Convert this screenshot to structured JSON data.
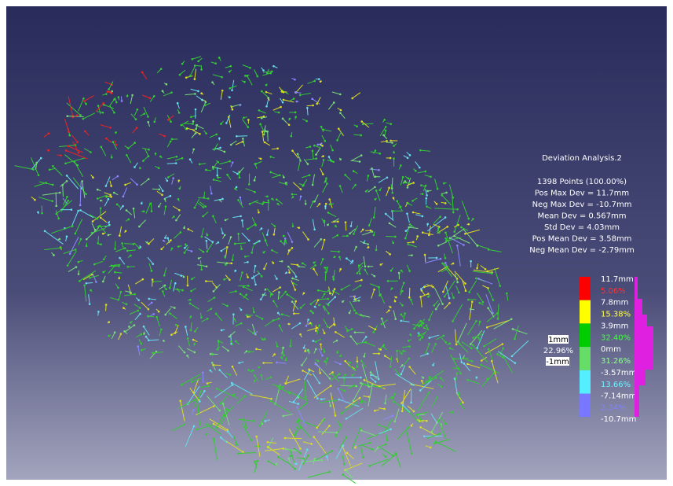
{
  "analysis": {
    "title": "Deviation Analysis.2",
    "stats": [
      "1398 Points (100.00%)",
      "Pos Max Dev = 11.7mm",
      "Neg Max Dev = -10.7mm",
      "Mean Dev = 0.567mm",
      "Std Dev = 4.03mm",
      "Pos Mean Dev = 3.58mm",
      "Neg Mean Dev = -2.79mm"
    ]
  },
  "scale": {
    "limits": [
      "11.7mm",
      "7.8mm",
      "3.9mm",
      "0mm",
      "-3.57mm",
      "-7.14mm",
      "-10.7mm"
    ],
    "percents": [
      "5.06%",
      "15.38%",
      "32.40%",
      "31.26%",
      "13.66%",
      "2.24%"
    ]
  },
  "tolerance": {
    "upper": "1mm",
    "percent": "22.96%",
    "lower": "-1mm"
  }
}
